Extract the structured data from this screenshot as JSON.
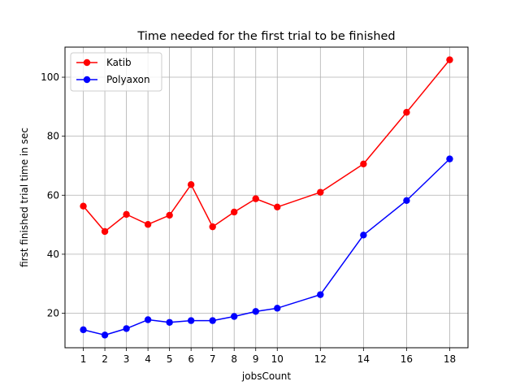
{
  "chart_data": {
    "type": "line",
    "title": "Time needed for the first trial to be finished",
    "xlabel": "jobsCount",
    "ylabel": "first finished trial time in sec",
    "x": [
      1,
      2,
      3,
      4,
      5,
      6,
      7,
      8,
      9,
      10,
      12,
      14,
      16,
      18
    ],
    "xticks": [
      1,
      2,
      3,
      4,
      5,
      6,
      7,
      8,
      9,
      10,
      12,
      14,
      16,
      18
    ],
    "yticks": [
      20,
      40,
      60,
      80,
      100
    ],
    "xlim": [
      0.15,
      18.85
    ],
    "ylim": [
      8.3,
      110.2
    ],
    "grid": true,
    "legend_position": "top-left",
    "series": [
      {
        "name": "Katib",
        "color": "#ff0000",
        "values": [
          56.3,
          47.7,
          53.5,
          50.1,
          53.2,
          63.6,
          49.3,
          54.3,
          58.8,
          56.0,
          61.0,
          70.6,
          88.1,
          105.9
        ]
      },
      {
        "name": "Polyaxon",
        "color": "#0000ff",
        "values": [
          14.4,
          12.6,
          14.8,
          17.8,
          16.9,
          17.5,
          17.5,
          18.9,
          20.6,
          21.7,
          26.3,
          46.5,
          58.2,
          72.3
        ]
      }
    ]
  }
}
